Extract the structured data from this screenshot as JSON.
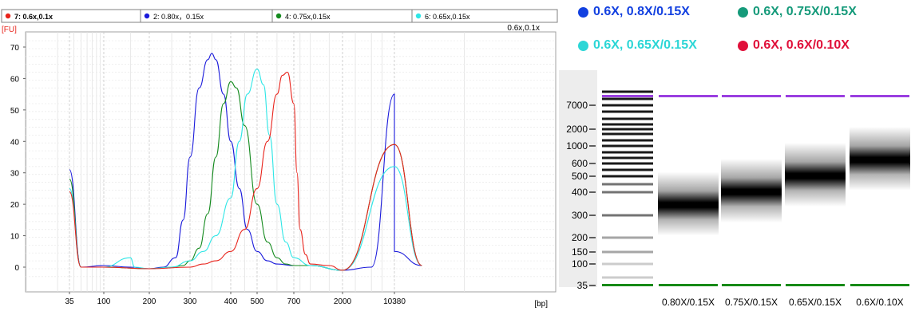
{
  "chart_data": [
    {
      "type": "line",
      "title": "",
      "ylabel": "[FU]",
      "xlabel": "[bp]",
      "top_right_label": "0.6x,0.1x",
      "legend": [
        {
          "label": "7: 0.6x,0.1x",
          "color": "#e8231b",
          "selected": true
        },
        {
          "label": "2: 0.80x，0.15x",
          "color": "#1a1adb"
        },
        {
          "label": "4: 0.75x,0.15x",
          "color": "#148a1e"
        },
        {
          "label": "6: 0.65x,0.15x",
          "color": "#2ee6e6"
        }
      ],
      "yticks": [
        0,
        10,
        20,
        30,
        40,
        50,
        60,
        70
      ],
      "ylim": [
        -3,
        73
      ],
      "xticks": [
        "35",
        "100",
        "200",
        "300",
        "400",
        "500",
        "700",
        "2000",
        "10380"
      ],
      "grid": true,
      "series": [
        {
          "name": "0.80x，0.15x",
          "color": "#1a1adb",
          "x": [
            35,
            50,
            100,
            150,
            200,
            230,
            260,
            280,
            300,
            320,
            340,
            350,
            360,
            380,
            400,
            430,
            460,
            500,
            550,
            600,
            700,
            1000,
            2000,
            5000,
            10380,
            10380,
            12000
          ],
          "y": [
            31,
            0,
            0.5,
            0,
            -0.5,
            0,
            3,
            15,
            35,
            57,
            66,
            68,
            66,
            55,
            40,
            25,
            12,
            5,
            2,
            1,
            0.5,
            0.5,
            -1,
            0,
            55,
            5,
            0.5
          ]
        },
        {
          "name": "0.75x,0.15x",
          "color": "#148a1e",
          "x": [
            35,
            50,
            100,
            200,
            250,
            280,
            300,
            320,
            340,
            360,
            380,
            400,
            420,
            450,
            500,
            550,
            600,
            650,
            700,
            1000,
            2000,
            10380,
            12000
          ],
          "y": [
            28,
            0,
            0,
            -0.5,
            0,
            0.5,
            2,
            6,
            17,
            35,
            52,
            59,
            57,
            45,
            20,
            8,
            3,
            1,
            0.5,
            0.5,
            -1,
            39,
            0.5
          ]
        },
        {
          "name": "0.65x,0.15x",
          "color": "#2ee6e6",
          "x": [
            35,
            50,
            100,
            150,
            160,
            200,
            250,
            300,
            330,
            360,
            400,
            430,
            460,
            500,
            530,
            560,
            600,
            650,
            700,
            1000,
            2000,
            10380,
            12000
          ],
          "y": [
            25,
            0,
            0,
            3,
            0,
            -0.5,
            0,
            2,
            5,
            10,
            22,
            40,
            55,
            63,
            58,
            42,
            20,
            8,
            3,
            0.5,
            -1,
            32,
            0.5
          ]
        },
        {
          "name": "0.6x,0.1x",
          "color": "#e8231b",
          "x": [
            35,
            50,
            100,
            200,
            300,
            330,
            360,
            400,
            450,
            500,
            550,
            600,
            630,
            660,
            700,
            750,
            800,
            900,
            1000,
            1500,
            2000,
            10380,
            12000
          ],
          "y": [
            24,
            0,
            0,
            -0.5,
            0,
            1,
            2,
            5,
            12,
            25,
            40,
            55,
            61,
            62,
            52,
            30,
            12,
            4,
            1,
            0.5,
            -1,
            39,
            0.5
          ]
        }
      ]
    },
    {
      "type": "gel",
      "legend": [
        {
          "label": "0.6X, 0.8X/0.15X",
          "color": "#1240e0"
        },
        {
          "label": "0.6X, 0.75X/0.15X",
          "color": "#159a7a"
        },
        {
          "label": "0.6X, 0.65X/0.15X",
          "color": "#2cd6d6"
        },
        {
          "label": "0.6X, 0.6X/0.10X",
          "color": "#e0103a"
        }
      ],
      "ladder_labels": [
        "7000",
        "2000",
        "1000",
        "600",
        "500",
        "400",
        "300",
        "200",
        "150",
        "100",
        "35"
      ],
      "lanes": [
        "0.80X/0.15X",
        "0.75X/0.15X",
        "0.65X/0.15X",
        "0.6X/0.10X"
      ],
      "lane_peaks_bp": [
        340,
        400,
        500,
        660
      ]
    }
  ]
}
